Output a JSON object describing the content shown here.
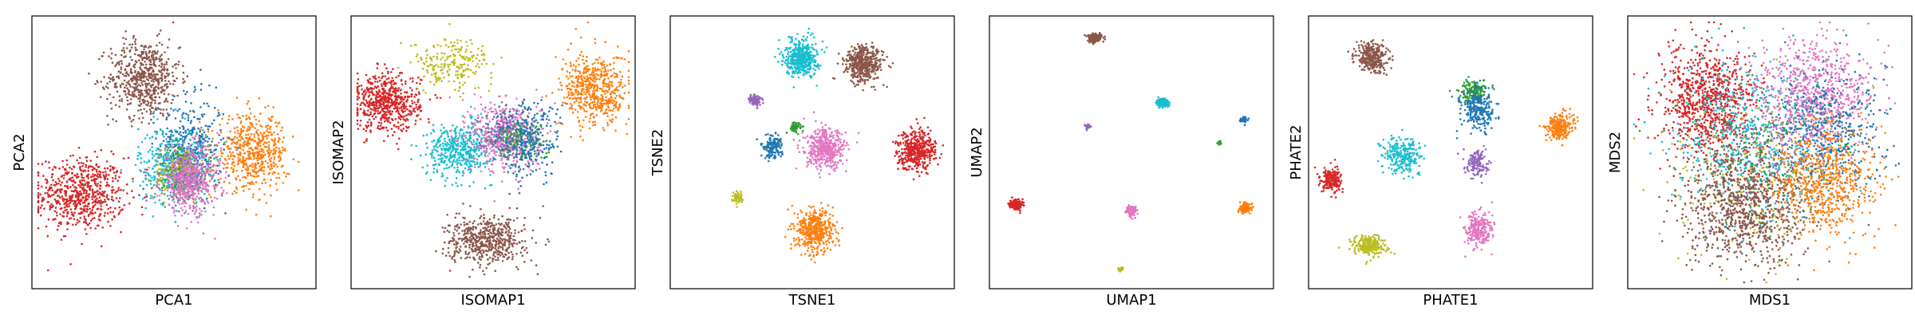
{
  "chart_data": [
    {
      "type": "scatter",
      "xlabel": "PCA1",
      "ylabel": "PCA2",
      "xlim": [
        -1,
        1
      ],
      "ylim": [
        -1,
        1
      ],
      "grid": false,
      "ticks": false,
      "clusters": [
        {
          "color": "#d62728",
          "center": [
            -0.68,
            -0.32
          ],
          "spread": [
            0.16,
            0.14
          ],
          "n": 650
        },
        {
          "color": "#8c564b",
          "center": [
            -0.22,
            0.57
          ],
          "spread": [
            0.13,
            0.15
          ],
          "n": 600
        },
        {
          "color": "#1f77b4",
          "center": [
            0.13,
            0.05
          ],
          "spread": [
            0.12,
            0.18
          ],
          "n": 350
        },
        {
          "color": "#17becf",
          "center": [
            0.0,
            -0.1
          ],
          "spread": [
            0.13,
            0.15
          ],
          "n": 400
        },
        {
          "color": "#2ca02c",
          "center": [
            0.05,
            -0.12
          ],
          "spread": [
            0.08,
            0.09
          ],
          "n": 150
        },
        {
          "color": "#bcbd22",
          "center": [
            0.05,
            -0.18
          ],
          "spread": [
            0.1,
            0.1
          ],
          "n": 150
        },
        {
          "color": "#9467bd",
          "center": [
            0.1,
            -0.2
          ],
          "spread": [
            0.1,
            0.1
          ],
          "n": 200
        },
        {
          "color": "#e377c2",
          "center": [
            0.12,
            -0.22
          ],
          "spread": [
            0.11,
            0.13
          ],
          "n": 400
        },
        {
          "color": "#ff7f0e",
          "center": [
            0.58,
            0.0
          ],
          "spread": [
            0.13,
            0.14
          ],
          "n": 550
        }
      ]
    },
    {
      "type": "scatter",
      "xlabel": "ISOMAP1",
      "ylabel": "ISOMAP2",
      "xlim": [
        -1,
        1
      ],
      "ylim": [
        -1,
        1
      ],
      "grid": false,
      "ticks": false,
      "clusters": [
        {
          "color": "#d62728",
          "center": [
            -0.78,
            0.38
          ],
          "spread": [
            0.12,
            0.11
          ],
          "n": 600
        },
        {
          "color": "#bcbd22",
          "center": [
            -0.3,
            0.68
          ],
          "spread": [
            0.15,
            0.1
          ],
          "n": 220
        },
        {
          "color": "#17becf",
          "center": [
            -0.25,
            0.02
          ],
          "spread": [
            0.12,
            0.1
          ],
          "n": 450
        },
        {
          "color": "#e377c2",
          "center": [
            0.1,
            0.12
          ],
          "spread": [
            0.13,
            0.14
          ],
          "n": 500
        },
        {
          "color": "#9467bd",
          "center": [
            0.05,
            0.15
          ],
          "spread": [
            0.08,
            0.08
          ],
          "n": 150
        },
        {
          "color": "#2ca02c",
          "center": [
            0.18,
            0.1
          ],
          "spread": [
            0.1,
            0.08
          ],
          "n": 120
        },
        {
          "color": "#1f77b4",
          "center": [
            0.25,
            0.1
          ],
          "spread": [
            0.12,
            0.15
          ],
          "n": 300
        },
        {
          "color": "#ff7f0e",
          "center": [
            0.75,
            0.48
          ],
          "spread": [
            0.12,
            0.14
          ],
          "n": 550
        },
        {
          "color": "#8c564b",
          "center": [
            -0.05,
            -0.68
          ],
          "spread": [
            0.14,
            0.09
          ],
          "n": 550
        }
      ]
    },
    {
      "type": "scatter",
      "xlabel": "TSNE1",
      "ylabel": "TSNE2",
      "xlim": [
        -1,
        1
      ],
      "ylim": [
        -1,
        1
      ],
      "grid": false,
      "ticks": false,
      "clusters": [
        {
          "color": "#17becf",
          "center": [
            -0.08,
            0.73
          ],
          "spread": [
            0.06,
            0.07
          ],
          "n": 450
        },
        {
          "color": "#8c564b",
          "center": [
            0.38,
            0.68
          ],
          "spread": [
            0.07,
            0.07
          ],
          "n": 450
        },
        {
          "color": "#9467bd",
          "center": [
            -0.42,
            0.4
          ],
          "spread": [
            0.025,
            0.025
          ],
          "n": 80
        },
        {
          "color": "#2ca02c",
          "center": [
            -0.12,
            0.2
          ],
          "spread": [
            0.02,
            0.02
          ],
          "n": 60
        },
        {
          "color": "#1f77b4",
          "center": [
            -0.3,
            0.04
          ],
          "spread": [
            0.04,
            0.045
          ],
          "n": 150
        },
        {
          "color": "#e377c2",
          "center": [
            0.1,
            0.02
          ],
          "spread": [
            0.075,
            0.075
          ],
          "n": 450
        },
        {
          "color": "#d62728",
          "center": [
            0.77,
            0.02
          ],
          "spread": [
            0.07,
            0.075
          ],
          "n": 450
        },
        {
          "color": "#bcbd22",
          "center": [
            -0.55,
            -0.35
          ],
          "spread": [
            0.02,
            0.025
          ],
          "n": 60
        },
        {
          "color": "#ff7f0e",
          "center": [
            0.02,
            -0.6
          ],
          "spread": [
            0.07,
            0.08
          ],
          "n": 450
        }
      ]
    },
    {
      "type": "scatter",
      "xlabel": "UMAP1",
      "ylabel": "UMAP2",
      "xlim": [
        -1,
        1
      ],
      "ylim": [
        -1,
        1
      ],
      "grid": false,
      "ticks": false,
      "clusters": [
        {
          "color": "#8c564b",
          "center": [
            -0.27,
            0.88
          ],
          "spread": [
            0.025,
            0.015
          ],
          "n": 200
        },
        {
          "color": "#17becf",
          "center": [
            0.23,
            0.38
          ],
          "spread": [
            0.02,
            0.015
          ],
          "n": 150
        },
        {
          "color": "#9467bd",
          "center": [
            -0.32,
            0.2
          ],
          "spread": [
            0.008,
            0.008
          ],
          "n": 40
        },
        {
          "color": "#1f77b4",
          "center": [
            0.83,
            0.25
          ],
          "spread": [
            0.012,
            0.01
          ],
          "n": 60
        },
        {
          "color": "#2ca02c",
          "center": [
            0.65,
            0.07
          ],
          "spread": [
            0.006,
            0.006
          ],
          "n": 25
        },
        {
          "color": "#d62728",
          "center": [
            -0.85,
            -0.4
          ],
          "spread": [
            0.022,
            0.018
          ],
          "n": 200
        },
        {
          "color": "#e377c2",
          "center": [
            0.0,
            -0.45
          ],
          "spread": [
            0.018,
            0.018
          ],
          "n": 150
        },
        {
          "color": "#ff7f0e",
          "center": [
            0.84,
            -0.43
          ],
          "spread": [
            0.02,
            0.016
          ],
          "n": 150
        },
        {
          "color": "#bcbd22",
          "center": [
            -0.08,
            -0.9
          ],
          "spread": [
            0.008,
            0.008
          ],
          "n": 30
        }
      ]
    },
    {
      "type": "scatter",
      "xlabel": "PHATE1",
      "ylabel": "PHATE2",
      "xlim": [
        -1,
        1
      ],
      "ylim": [
        -1,
        1
      ],
      "grid": false,
      "ticks": false,
      "clusters": [
        {
          "color": "#8c564b",
          "center": [
            -0.58,
            0.73
          ],
          "spread": [
            0.06,
            0.06
          ],
          "n": 300
        },
        {
          "color": "#2ca02c",
          "center": [
            0.17,
            0.47
          ],
          "spread": [
            0.05,
            0.04
          ],
          "n": 150
        },
        {
          "color": "#1f77b4",
          "center": [
            0.2,
            0.33
          ],
          "spread": [
            0.06,
            0.08
          ],
          "n": 250
        },
        {
          "color": "#ff7f0e",
          "center": [
            0.8,
            0.2
          ],
          "spread": [
            0.05,
            0.05
          ],
          "n": 250
        },
        {
          "color": "#17becf",
          "center": [
            -0.35,
            -0.02
          ],
          "spread": [
            0.07,
            0.07
          ],
          "n": 250
        },
        {
          "color": "#9467bd",
          "center": [
            0.2,
            -0.08
          ],
          "spread": [
            0.04,
            0.05
          ],
          "n": 150
        },
        {
          "color": "#d62728",
          "center": [
            -0.88,
            -0.22
          ],
          "spread": [
            0.04,
            0.05
          ],
          "n": 200
        },
        {
          "color": "#e377c2",
          "center": [
            0.2,
            -0.6
          ],
          "spread": [
            0.05,
            0.07
          ],
          "n": 250
        },
        {
          "color": "#bcbd22",
          "center": [
            -0.6,
            -0.72
          ],
          "spread": [
            0.06,
            0.04
          ],
          "n": 250
        }
      ]
    },
    {
      "type": "scatter",
      "xlabel": "MDS1",
      "ylabel": "MDS2",
      "xlim": [
        -1,
        1
      ],
      "ylim": [
        -1,
        1
      ],
      "grid": false,
      "ticks": false,
      "clusters": [
        {
          "color": "#d62728",
          "center": [
            -0.45,
            0.38
          ],
          "spread": [
            0.18,
            0.22
          ],
          "n": 900
        },
        {
          "color": "#17becf",
          "center": [
            -0.1,
            0.1
          ],
          "spread": [
            0.28,
            0.28
          ],
          "n": 600
        },
        {
          "color": "#9467bd",
          "center": [
            0.05,
            0.2
          ],
          "spread": [
            0.22,
            0.2
          ],
          "n": 150
        },
        {
          "color": "#e377c2",
          "center": [
            0.35,
            0.45
          ],
          "spread": [
            0.2,
            0.22
          ],
          "n": 700
        },
        {
          "color": "#1f77b4",
          "center": [
            0.45,
            0.15
          ],
          "spread": [
            0.2,
            0.25
          ],
          "n": 450
        },
        {
          "color": "#2ca02c",
          "center": [
            -0.05,
            -0.1
          ],
          "spread": [
            0.3,
            0.3
          ],
          "n": 150
        },
        {
          "color": "#bcbd22",
          "center": [
            -0.25,
            -0.2
          ],
          "spread": [
            0.3,
            0.3
          ],
          "n": 150
        },
        {
          "color": "#8c564b",
          "center": [
            -0.2,
            -0.42
          ],
          "spread": [
            0.22,
            0.22
          ],
          "n": 900
        },
        {
          "color": "#ff7f0e",
          "center": [
            0.38,
            -0.22
          ],
          "spread": [
            0.2,
            0.22
          ],
          "n": 700
        }
      ]
    }
  ]
}
